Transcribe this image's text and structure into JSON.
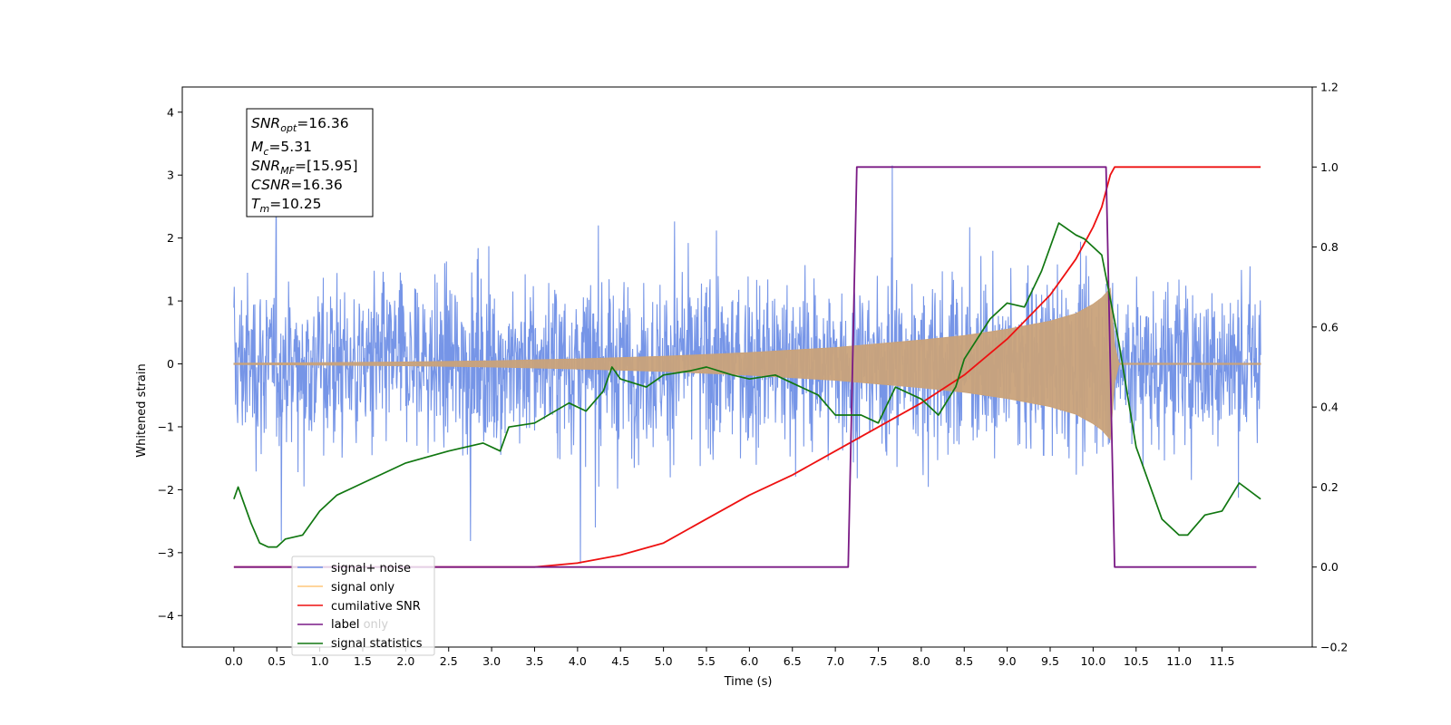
{
  "chart_data": {
    "type": "line",
    "xlabel": "Time (s)",
    "ylabel": "Whitened strain",
    "xlim": [
      -0.6,
      12.55
    ],
    "ylim": [
      -4.5,
      4.4
    ],
    "y2lim": [
      -0.2,
      1.2
    ],
    "x_ticks": [
      "0.0",
      "0.5",
      "1.0",
      "1.5",
      "2.0",
      "2.5",
      "3.0",
      "3.5",
      "4.0",
      "4.5",
      "5.0",
      "5.5",
      "6.0",
      "6.5",
      "7.0",
      "7.5",
      "8.0",
      "8.5",
      "9.0",
      "9.5",
      "10.0",
      "10.5",
      "11.0",
      "11.5"
    ],
    "y_ticks": [
      "4",
      "3",
      "2",
      "1",
      "0",
      "−1",
      "−2",
      "−3",
      "−4"
    ],
    "y2_ticks": [
      "1.2",
      "1.0",
      "0.8",
      "0.6",
      "0.4",
      "0.2",
      "0.0",
      "−0.2"
    ],
    "colors": {
      "signal_noise": "#6f8fe6",
      "signal_only": "#c9a27a",
      "cumulative_snr": "#ee1111",
      "label": "#7a1a85",
      "statistics": "#117711"
    },
    "annotation": {
      "snr_opt": "=16.36",
      "mc": "=5.31",
      "snr_mf": "=[15.95]",
      "csnr": "=16.36",
      "tm": "=10.25"
    },
    "legend": {
      "placement": "lower-left",
      "entries": [
        "signal+ noise",
        "signal only",
        "cumilative SNR",
        "label",
        "signal statistics"
      ],
      "hidden_fragment": "label only"
    },
    "series": [
      {
        "name": "signal+ noise",
        "axis": "left",
        "description_range": [
          0.0,
          11.95
        ],
        "amplitude_envelope": 2.6
      },
      {
        "name": "signal only",
        "axis": "left",
        "envelope": [
          [
            0.0,
            0.01
          ],
          [
            1.0,
            0.02
          ],
          [
            2.0,
            0.03
          ],
          [
            3.0,
            0.05
          ],
          [
            4.0,
            0.08
          ],
          [
            5.0,
            0.12
          ],
          [
            6.0,
            0.18
          ],
          [
            7.0,
            0.26
          ],
          [
            8.0,
            0.38
          ],
          [
            8.5,
            0.45
          ],
          [
            9.0,
            0.55
          ],
          [
            9.5,
            0.68
          ],
          [
            9.8,
            0.8
          ],
          [
            10.0,
            0.95
          ],
          [
            10.1,
            1.05
          ],
          [
            10.2,
            1.2
          ],
          [
            10.25,
            0.3
          ],
          [
            10.3,
            0.01
          ],
          [
            11.95,
            0.01
          ]
        ]
      },
      {
        "name": "cumilative SNR",
        "axis": "right",
        "points": [
          [
            0.0,
            0.0
          ],
          [
            3.5,
            0.0
          ],
          [
            4.0,
            0.01
          ],
          [
            4.5,
            0.03
          ],
          [
            5.0,
            0.06
          ],
          [
            5.5,
            0.12
          ],
          [
            6.0,
            0.18
          ],
          [
            6.5,
            0.23
          ],
          [
            7.0,
            0.29
          ],
          [
            7.5,
            0.35
          ],
          [
            8.0,
            0.41
          ],
          [
            8.5,
            0.48
          ],
          [
            9.0,
            0.57
          ],
          [
            9.5,
            0.68
          ],
          [
            9.8,
            0.77
          ],
          [
            10.0,
            0.85
          ],
          [
            10.1,
            0.9
          ],
          [
            10.2,
            0.98
          ],
          [
            10.25,
            1.0
          ],
          [
            11.95,
            1.0
          ]
        ]
      },
      {
        "name": "label",
        "axis": "right",
        "points": [
          [
            0.0,
            0.0
          ],
          [
            7.15,
            0.0
          ],
          [
            7.25,
            1.0
          ],
          [
            10.15,
            1.0
          ],
          [
            10.25,
            0.0
          ],
          [
            11.9,
            0.0
          ]
        ]
      },
      {
        "name": "signal statistics",
        "axis": "right",
        "points": [
          [
            0.0,
            0.17
          ],
          [
            0.05,
            0.2
          ],
          [
            0.1,
            0.17
          ],
          [
            0.2,
            0.11
          ],
          [
            0.3,
            0.06
          ],
          [
            0.4,
            0.05
          ],
          [
            0.5,
            0.05
          ],
          [
            0.6,
            0.07
          ],
          [
            0.8,
            0.08
          ],
          [
            1.0,
            0.14
          ],
          [
            1.2,
            0.18
          ],
          [
            1.5,
            0.21
          ],
          [
            2.0,
            0.26
          ],
          [
            2.5,
            0.29
          ],
          [
            2.9,
            0.31
          ],
          [
            3.1,
            0.29
          ],
          [
            3.2,
            0.35
          ],
          [
            3.5,
            0.36
          ],
          [
            3.9,
            0.41
          ],
          [
            4.1,
            0.39
          ],
          [
            4.3,
            0.44
          ],
          [
            4.4,
            0.5
          ],
          [
            4.5,
            0.47
          ],
          [
            4.8,
            0.45
          ],
          [
            5.0,
            0.48
          ],
          [
            5.3,
            0.49
          ],
          [
            5.5,
            0.5
          ],
          [
            5.8,
            0.48
          ],
          [
            6.0,
            0.47
          ],
          [
            6.3,
            0.48
          ],
          [
            6.5,
            0.46
          ],
          [
            6.8,
            0.43
          ],
          [
            7.0,
            0.38
          ],
          [
            7.3,
            0.38
          ],
          [
            7.5,
            0.36
          ],
          [
            7.7,
            0.45
          ],
          [
            8.0,
            0.42
          ],
          [
            8.2,
            0.38
          ],
          [
            8.4,
            0.45
          ],
          [
            8.5,
            0.52
          ],
          [
            8.8,
            0.62
          ],
          [
            9.0,
            0.66
          ],
          [
            9.2,
            0.65
          ],
          [
            9.4,
            0.74
          ],
          [
            9.6,
            0.86
          ],
          [
            9.8,
            0.83
          ],
          [
            9.9,
            0.82
          ],
          [
            10.1,
            0.78
          ],
          [
            10.3,
            0.56
          ],
          [
            10.5,
            0.3
          ],
          [
            10.8,
            0.12
          ],
          [
            11.0,
            0.08
          ],
          [
            11.1,
            0.08
          ],
          [
            11.3,
            0.13
          ],
          [
            11.5,
            0.14
          ],
          [
            11.7,
            0.21
          ],
          [
            11.95,
            0.17
          ]
        ]
      }
    ]
  }
}
